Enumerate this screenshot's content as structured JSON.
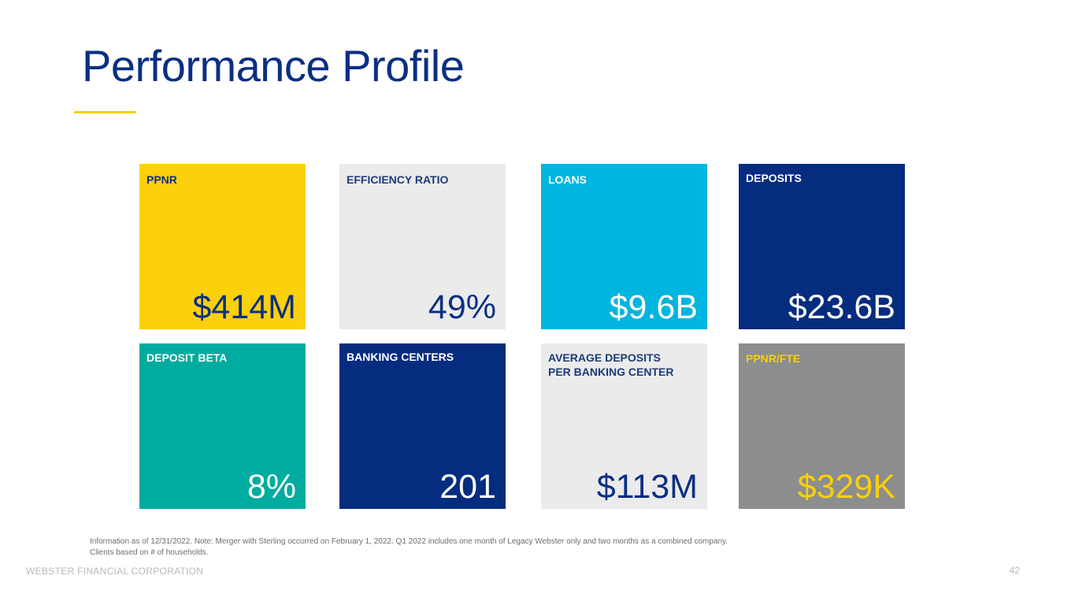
{
  "page": {
    "title": "Performance Profile",
    "footnote_line1": "Information as of 12/31/2022. Note: Merger with Sterling occurred on February 1, 2022.  Q1 2022 includes one month of Legacy Webster only and two months as a combined company.",
    "footnote_line2": "Clients based on # of households.",
    "footer_company": "WEBSTER FINANCIAL CORPORATION",
    "page_number": "42"
  },
  "colors": {
    "title": "#0a2f83",
    "accent_yellow": "#f8cf0c",
    "navy": "#052c7f",
    "light_gray": "#ebebeb",
    "cyan": "#00b5df",
    "teal": "#00ab9f",
    "mid_gray": "#8c8d8e"
  },
  "tiles": [
    {
      "label": "PPNR",
      "value": "$414M"
    },
    {
      "label": "EFFICIENCY RATIO",
      "value": "49%"
    },
    {
      "label": "LOANS",
      "value": "$9.6B"
    },
    {
      "label": "DEPOSITS",
      "value": "$23.6B"
    },
    {
      "label": "DEPOSIT BETA",
      "value": "8%"
    },
    {
      "label": "BANKING CENTERS",
      "value": "201"
    },
    {
      "label": "AVERAGE DEPOSITS PER BANKING CENTER",
      "value": "$113M"
    },
    {
      "label": "PPNR/FTE",
      "value": "$329K"
    }
  ]
}
